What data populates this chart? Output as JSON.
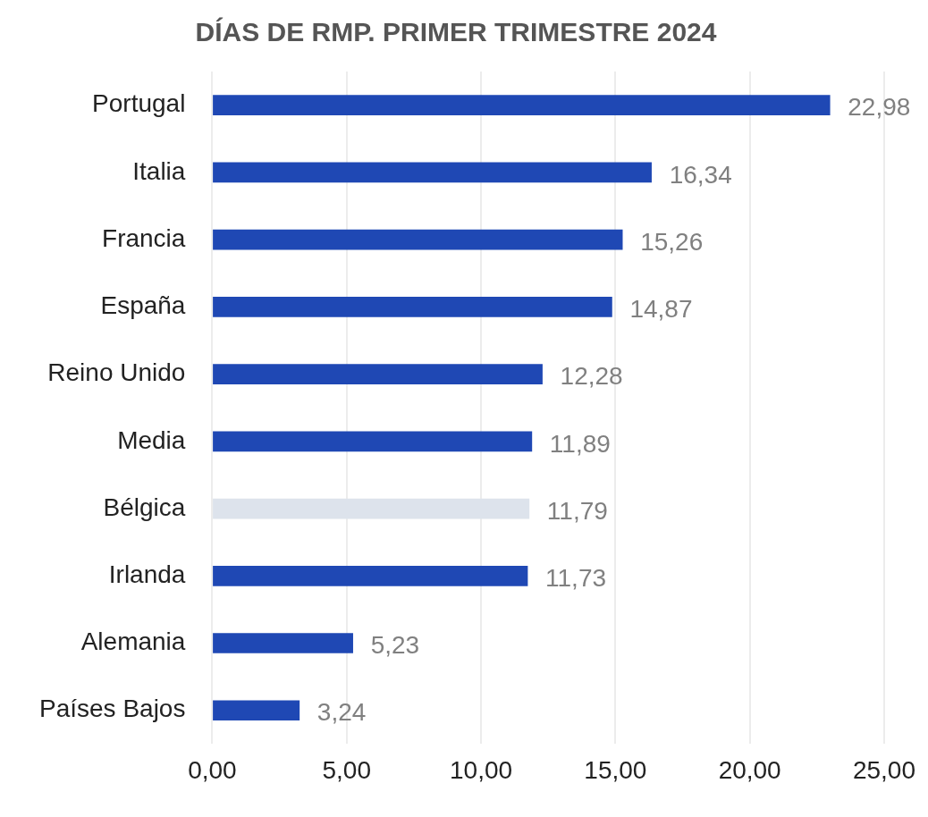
{
  "chart_data": {
    "type": "bar",
    "orientation": "horizontal",
    "title": "DÍAS DE RMP. PRIMER TRIMESTRE 2024",
    "categories": [
      "Portugal",
      "Italia",
      "Francia",
      "España",
      "Reino Unido",
      "Media",
      "Bélgica",
      "Irlanda",
      "Alemania",
      "Países Bajos"
    ],
    "values": [
      22.98,
      16.34,
      15.26,
      14.87,
      12.28,
      11.89,
      11.79,
      11.73,
      5.23,
      3.24
    ],
    "colors": [
      "#1f48b4",
      "#1f48b4",
      "#1f48b4",
      "#1f48b4",
      "#1f48b4",
      "#1f48b4",
      "#dde3ec",
      "#1f48b4",
      "#1f48b4",
      "#1f48b4"
    ],
    "value_labels": [
      "22,98",
      "16,34",
      "15,26",
      "14,87",
      "12,28",
      "11,89",
      "11,79",
      "11,73",
      "5,23",
      "3,24"
    ],
    "xlim": [
      0,
      25
    ],
    "xticks": [
      {
        "value": 0,
        "label": "0,00"
      },
      {
        "value": 5,
        "label": "5,00"
      },
      {
        "value": 10,
        "label": "10,00"
      },
      {
        "value": 15,
        "label": "15,00"
      },
      {
        "value": 20,
        "label": "20,00"
      },
      {
        "value": 25,
        "label": "25,00"
      }
    ],
    "grid": "x",
    "legend": false
  }
}
